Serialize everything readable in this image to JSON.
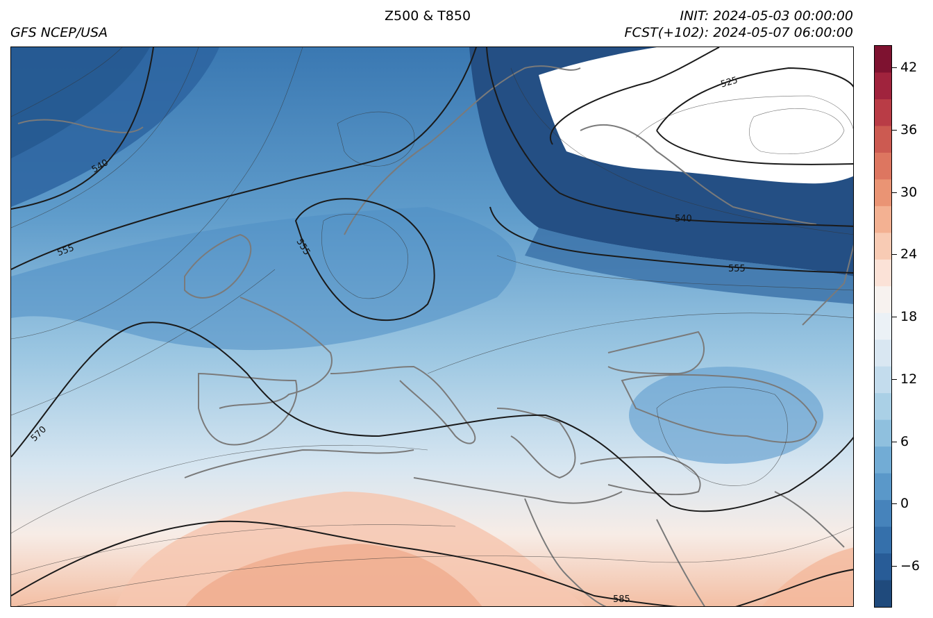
{
  "header": {
    "source": "GFS NCEP/USA",
    "title": "Z500 & T850",
    "init": "INIT: 2024-05-03 00:00:00",
    "forecast": "FCST(+102): 2024-05-07 06:00:00"
  },
  "colorbar": {
    "ticks": [
      "−6",
      "0",
      "6",
      "12",
      "18",
      "24",
      "30",
      "36",
      "42"
    ],
    "colors": [
      "#1f4a7c",
      "#285c97",
      "#3570ab",
      "#4683bb",
      "#5a98c9",
      "#72acd5",
      "#8fc0de",
      "#aad0e6",
      "#c3dced",
      "#d9e7f2",
      "#ebf1f6",
      "#f7f2ef",
      "#fbe2d7",
      "#f8cbb4",
      "#f3b192",
      "#ea9474",
      "#dd7660",
      "#cc5a51",
      "#b93c46",
      "#a0233d",
      "#7e1230"
    ]
  },
  "map": {
    "contour_labels": [
      "525",
      "540",
      "540",
      "555",
      "555",
      "555",
      "570",
      "585"
    ]
  }
}
